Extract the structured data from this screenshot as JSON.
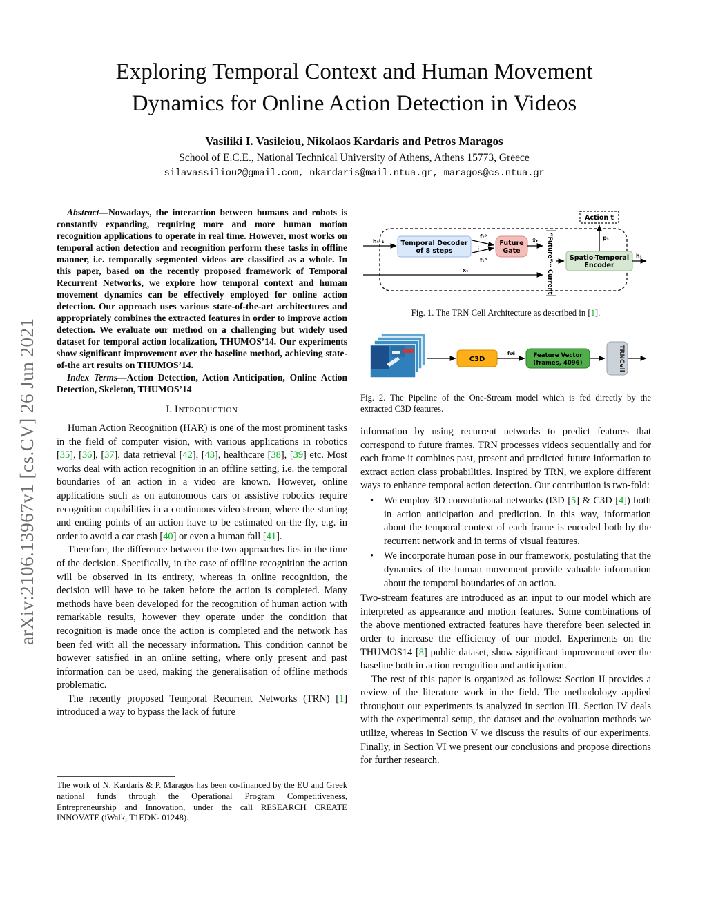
{
  "sidebar": {
    "arxiv_label": "arXiv:2106.13967v1  [cs.CV]  26 Jun 2021"
  },
  "header": {
    "title_line1": "Exploring Temporal Context and Human Movement",
    "title_line2": "Dynamics for Online Action Detection in Videos",
    "authors": "Vasiliki I. Vasileiou, Nikolaos Kardaris and Petros Maragos",
    "affiliation": "School of E.C.E., National Technical University of Athens, Athens 15773, Greece",
    "emails": "silavassiliou2@gmail.com, nkardaris@mail.ntua.gr, maragos@cs.ntua.gr"
  },
  "abstract": {
    "segments": [
      {
        "t": "Abstract",
        "s": "lead"
      },
      {
        "t": "—Nowadays, the interaction between humans and robots is constantly expanding, requiring more and more human motion recognition applications to operate in real time. However, most works on temporal action detection and recognition perform these tasks in offline manner, i.e. temporally segmented videos are classified as a whole. In this paper, based on the recently proposed framework of Temporal Recurrent Networks, we explore how temporal context and human movement dynamics can be effectively employed for online action detection. Our approach uses various state-of-the-art architectures and appropriately combines the extracted features in order to improve action detection. We evaluate our method on a challenging but widely used dataset for temporal action localization, THUMOS’14. Our experiments show significant improvement over the baseline method, achieving state-of-the art results on THUMOS’14."
      }
    ],
    "index_segments": [
      {
        "t": "Index Terms",
        "s": "lead"
      },
      {
        "t": "—Action Detection, Action Anticipation, Online Action Detection, Skeleton, THUMOS’14"
      }
    ]
  },
  "intro": {
    "heading_num": "I.",
    "heading_word": "Introduction",
    "p1": [
      {
        "t": "Human Action Recognition (HAR) is one of the most prominent tasks in the field of computer vision, with various applications in robotics ["
      },
      {
        "t": "35",
        "s": "cite"
      },
      {
        "t": "], ["
      },
      {
        "t": "36",
        "s": "cite"
      },
      {
        "t": "], ["
      },
      {
        "t": "37",
        "s": "cite"
      },
      {
        "t": "], data retrieval ["
      },
      {
        "t": "42",
        "s": "cite"
      },
      {
        "t": "], ["
      },
      {
        "t": "43",
        "s": "cite"
      },
      {
        "t": "], healthcare ["
      },
      {
        "t": "38",
        "s": "cite"
      },
      {
        "t": "], ["
      },
      {
        "t": "39",
        "s": "cite"
      },
      {
        "t": "] etc. Most works deal with action recognition in an offline setting, i.e. the temporal boundaries of an action in a video are known. However, online applications such as on autonomous cars or assistive robotics require recognition capabilities in a continuous video stream, where the starting and ending points of an action have to be estimated on-the-fly, e.g. in order to avoid a car crash ["
      },
      {
        "t": "40",
        "s": "cite"
      },
      {
        "t": "] or even a human fall ["
      },
      {
        "t": "41",
        "s": "cite"
      },
      {
        "t": "]."
      }
    ],
    "p2": "Therefore, the difference between the two approaches lies in the time of the decision. Specifically, in the case of offline recognition the action will be observed in its entirety, whereas in online recognition, the decision will have to be taken before the action is completed. Many methods have been developed for the recognition of human action with remarkable results, however they operate under the condition that recognition is made once the action is completed and the network has been fed with all the necessary information. This condition cannot be however satisfied in an online setting, where only present and past information can be used, making the generalisation of offline methods problematic.",
    "p3": [
      {
        "t": "The recently proposed Temporal Recurrent Networks (TRN) ["
      },
      {
        "t": "1",
        "s": "cite"
      },
      {
        "t": "] introduced a way to bypass the lack of future"
      }
    ]
  },
  "footnote": {
    "text": "The work of N. Kardaris & P. Maragos has been co-financed by the EU and Greek national funds through the Operational Program Competitiveness, Entrepreneurship and Innovation, under the call RESEARCH CREATE INNOVATE (iWalk, T1EDK- 01248)."
  },
  "fig1": {
    "action_box": "Action t",
    "decoder_line1": "Temporal Decoder",
    "decoder_line2": "of 8 steps",
    "gate_line1": "Future",
    "gate_line2": "Gate",
    "encoder_line1": "Spatio-Temporal",
    "encoder_line2": "Encoder",
    "future_label": "“Future”",
    "current_label": "Current",
    "sym_h_prev": "hₜ₋₁",
    "sym_f_first": "fₜ⁰",
    "sym_dots": "⋮",
    "sym_f_last": "fₜ⁸",
    "sym_x_tilde": "x̃ₜ",
    "sym_x": "xₜ",
    "sym_p": "pₜ",
    "sym_h": "hₜ",
    "caption_segments": [
      {
        "t": "Fig. 1.   The TRN Cell Architecture as described in ["
      },
      {
        "t": "1",
        "s": "cite"
      },
      {
        "t": "]."
      }
    ]
  },
  "fig2": {
    "c3d": "C3D",
    "fc6": "fc6",
    "fv_line1": "Feature Vector",
    "fv_line2": "(frames, 4096)",
    "trncell": "TRNCell",
    "caption": "Fig. 2.   The Pipeline of the One-Stream model which is fed directly by the extracted C3D features."
  },
  "right": {
    "p1": "information by using recurrent networks to predict features that correspond to future frames. TRN processes videos sequentially and for each frame it combines past, present and predicted future information to extract action class probabilities.  Inspired by TRN, we explore different ways to enhance temporal action detection. Our contribution is two-fold:",
    "bullet_glyph": "•",
    "bullet1": [
      {
        "t": "We employ 3D convolutional networks (I3D ["
      },
      {
        "t": "5",
        "s": "cite"
      },
      {
        "t": "] & C3D ["
      },
      {
        "t": "4",
        "s": "cite"
      },
      {
        "t": "]) both in action anticipation and prediction. In this way, information about the temporal context of each frame is encoded both by the recurrent network and in terms of visual features."
      }
    ],
    "bullet2": "We incorporate human pose in our framework, postulating that the dynamics of the human movement provide valuable information about the temporal boundaries of an action.",
    "p2": [
      {
        "t": "Two-stream features are introduced as an input to our model which are interpreted as appearance and motion features. Some combinations of the above mentioned extracted features have therefore been selected in order to increase the efficiency of our model. Experiments on the THUMOS14 ["
      },
      {
        "t": "8",
        "s": "cite"
      },
      {
        "t": "] public dataset, show significant improvement over the baseline both in action recognition and anticipation."
      }
    ],
    "p3": "The rest of this paper is organized as follows: Section II provides a review of the literature work in the field. The methodology applied throughout our experiments is analyzed in section III. Section IV deals with the experimental setup, the dataset and the evaluation methods we utilize, whereas in Section V we discuss the results of our experiments. Finally, in Section VI we present our conclusions and propose directions for further research."
  },
  "colors": {
    "citation_green": "#00b320",
    "decoder_box": "#d9e8fb",
    "future_gate_box": "#f5bdba",
    "encoder_box": "#d6e8d2",
    "c3d_orange": "#fcaf17",
    "feature_vector_green": "#4fae4a",
    "trncell_gray": "#ccd2d9",
    "arxiv_gray": "#6e6e6e"
  }
}
